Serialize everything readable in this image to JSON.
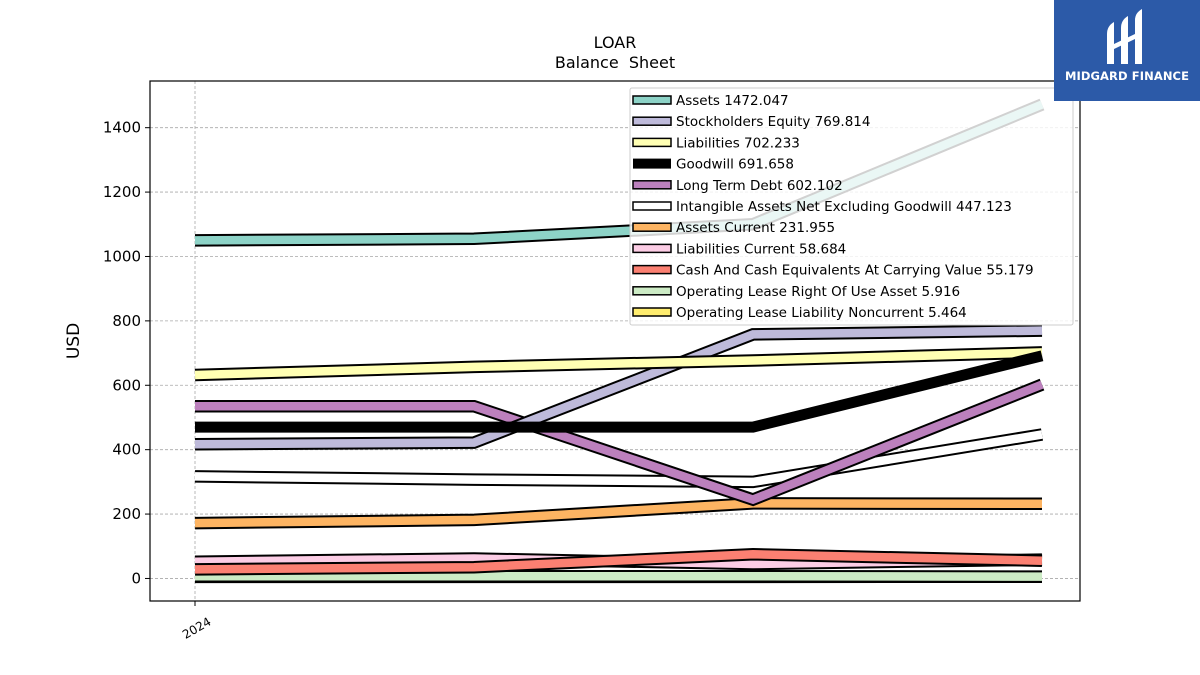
{
  "chart_data": {
    "type": "line",
    "title": "LOAR",
    "subtitle": "Balance  Sheet",
    "ylabel": "USD",
    "xlabel": "",
    "x_tick_labels": [
      "2024"
    ],
    "y_ticks": [
      0,
      200,
      400,
      600,
      800,
      1000,
      1200,
      1400
    ],
    "ylim": [
      -70,
      1545
    ],
    "grid": true,
    "legend_position": "top-right",
    "series": [
      {
        "name": "Assets",
        "legend_value": "1472.047",
        "color": "#8dd3c7",
        "values": [
          1050,
          1055,
          1100,
          1472.047
        ]
      },
      {
        "name": "Stockholders Equity",
        "legend_value": "769.814",
        "color": "#bebada",
        "values": [
          417,
          422,
          758,
          769.814
        ]
      },
      {
        "name": "Liabilities",
        "legend_value": "702.233",
        "color": "#ffffb3",
        "values": [
          632,
          657,
          677,
          702.233
        ]
      },
      {
        "name": "Goodwill",
        "legend_value": "691.658",
        "color": "#000000",
        "values": [
          470,
          470,
          470,
          691.658
        ]
      },
      {
        "name": "Long Term Debt",
        "legend_value": "602.102",
        "color": "#bc80bd",
        "values": [
          535,
          535,
          245,
          602.102
        ]
      },
      {
        "name": "Intangible Assets Net Excluding Goodwill",
        "legend_value": "447.123",
        "color": "#ffffff",
        "values": [
          317,
          307,
          300,
          447.123
        ]
      },
      {
        "name": "Assets Current",
        "legend_value": "231.955",
        "color": "#fdb462",
        "values": [
          172,
          182,
          233,
          231.955
        ]
      },
      {
        "name": "Liabilities Current",
        "legend_value": "58.684",
        "color": "#fccde5",
        "values": [
          52,
          62,
          45,
          58.684
        ]
      },
      {
        "name": "Cash And Cash Equivalents At Carrying Value",
        "legend_value": "55.179",
        "color": "#fb8072",
        "values": [
          28,
          35,
          75,
          55.179
        ]
      },
      {
        "name": "Operating Lease Right Of Use Asset",
        "legend_value": "5.916",
        "color": "#ccebc5",
        "values": [
          7,
          7,
          7,
          5.916
        ]
      },
      {
        "name": "Operating Lease Liability Noncurrent",
        "legend_value": "5.464",
        "color": "#ffed6f",
        "values": [
          5,
          5,
          5,
          5.464
        ]
      }
    ]
  },
  "logo": {
    "text": "MIDGARD FINANCE",
    "bg_color": "#2c5aa8"
  }
}
